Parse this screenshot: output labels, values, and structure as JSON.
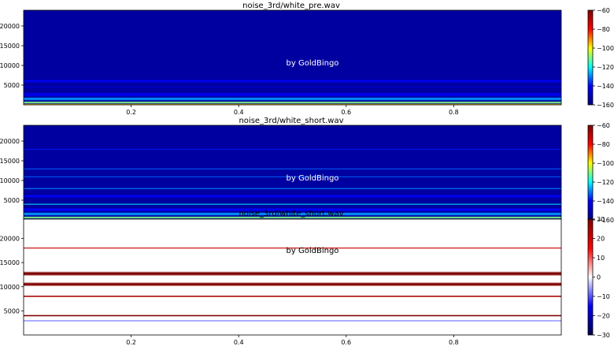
{
  "colors": {
    "jet": [
      "#000080",
      "#0000ff",
      "#00ffff",
      "#ffff00",
      "#ff0000",
      "#800000"
    ],
    "seismic": [
      "#00004c",
      "#0000ff",
      "#ffffff",
      "#ff0000",
      "#800000"
    ],
    "axes_frame": "#000000",
    "watermark": "#ffffff",
    "watermark_on_light": "#000000"
  },
  "chart_data": [
    {
      "type": "heatmap",
      "title": "noise_3rd/white_pre.wav",
      "watermark": "by GoldBingo",
      "colormap": "jet",
      "xlim": [
        0,
        1
      ],
      "ylim": [
        0,
        24000
      ],
      "xticks": [
        0.2,
        0.4,
        0.6,
        0.8
      ],
      "xtick_labels": [
        "0.2",
        "0.4",
        "0.6",
        "0.8"
      ],
      "yticks": [
        5000,
        10000,
        15000,
        20000
      ],
      "ytick_labels": [
        "5000",
        "10000",
        "15000",
        "20000"
      ],
      "colorbar": {
        "vmin": -160,
        "vmax": -60,
        "ticks": [
          -60,
          -80,
          -100,
          -120,
          -140,
          -160
        ],
        "tick_labels": [
          "−60",
          "−80",
          "−100",
          "−120",
          "−140",
          "−160"
        ]
      },
      "background_value": -155,
      "bands": [
        {
          "freq": 0,
          "width": 700,
          "value": -95
        },
        {
          "freq": 600,
          "width": 600,
          "value": -110
        },
        {
          "freq": 1500,
          "width": 900,
          "value": -128
        },
        {
          "freq": 2600,
          "width": 1200,
          "value": -143
        },
        {
          "freq": 4500,
          "width": 700,
          "value": -150
        },
        {
          "freq": 6000,
          "width": 350,
          "value": -118
        },
        {
          "freq": 6000,
          "width": 900,
          "value": -142
        }
      ]
    },
    {
      "type": "heatmap",
      "title": "noise_3rd/white_short.wav",
      "watermark": "by GoldBingo",
      "colormap": "jet",
      "xlim": [
        0,
        1
      ],
      "ylim": [
        0,
        24000
      ],
      "xticks": [
        0.2,
        0.4,
        0.6,
        0.8
      ],
      "xtick_labels": [
        "0.2",
        "0.4",
        "0.6",
        "0.8"
      ],
      "yticks": [
        5000,
        10000,
        15000,
        20000
      ],
      "ytick_labels": [
        "5000",
        "10000",
        "15000",
        "20000"
      ],
      "colorbar": {
        "vmin": -160,
        "vmax": -60,
        "ticks": [
          -60,
          -80,
          -100,
          -120,
          -140,
          -160
        ],
        "tick_labels": [
          "−60",
          "−80",
          "−100",
          "−120",
          "−140",
          "−160"
        ]
      },
      "background_value": -155,
      "bands": [
        {
          "freq": 0,
          "width": 700,
          "value": -95
        },
        {
          "freq": 600,
          "width": 600,
          "value": -110
        },
        {
          "freq": 1500,
          "width": 900,
          "value": -128
        },
        {
          "freq": 2600,
          "width": 900,
          "value": -140
        },
        {
          "freq": 4000,
          "width": 250,
          "value": -120
        },
        {
          "freq": 6000,
          "width": 350,
          "value": -118
        },
        {
          "freq": 6000,
          "width": 900,
          "value": -142
        },
        {
          "freq": 8000,
          "width": 220,
          "value": -128
        },
        {
          "freq": 11000,
          "width": 200,
          "value": -132
        },
        {
          "freq": 13000,
          "width": 200,
          "value": -132
        },
        {
          "freq": 18000,
          "width": 150,
          "value": -138
        }
      ]
    },
    {
      "type": "heatmap",
      "title": "noise_3rd/white_short.wav",
      "watermark": "by GoldBingo",
      "colormap": "seismic",
      "xlim": [
        0,
        1
      ],
      "ylim": [
        0,
        24000
      ],
      "xticks": [
        0.2,
        0.4,
        0.6,
        0.8
      ],
      "xtick_labels": [
        "0.2",
        "0.4",
        "0.6",
        "0.8"
      ],
      "yticks": [
        5000,
        10000,
        15000,
        20000
      ],
      "ytick_labels": [
        "5000",
        "10000",
        "15000",
        "20000"
      ],
      "colorbar": {
        "vmin": -30,
        "vmax": 30,
        "ticks": [
          30,
          20,
          10,
          0,
          -10,
          -20,
          -30
        ],
        "tick_labels": [
          "30",
          "20",
          "10",
          "0",
          "−10",
          "−20",
          "−30"
        ]
      },
      "background_value": 0,
      "bands": [
        {
          "freq": 3000,
          "width": 120,
          "value": -10
        },
        {
          "freq": 4000,
          "width": 400,
          "value": 30
        },
        {
          "freq": 8000,
          "width": 400,
          "value": 25
        },
        {
          "freq": 10500,
          "width": 900,
          "value": 30
        },
        {
          "freq": 12700,
          "width": 1000,
          "value": 30
        },
        {
          "freq": 18000,
          "width": 300,
          "value": 22
        }
      ]
    }
  ]
}
